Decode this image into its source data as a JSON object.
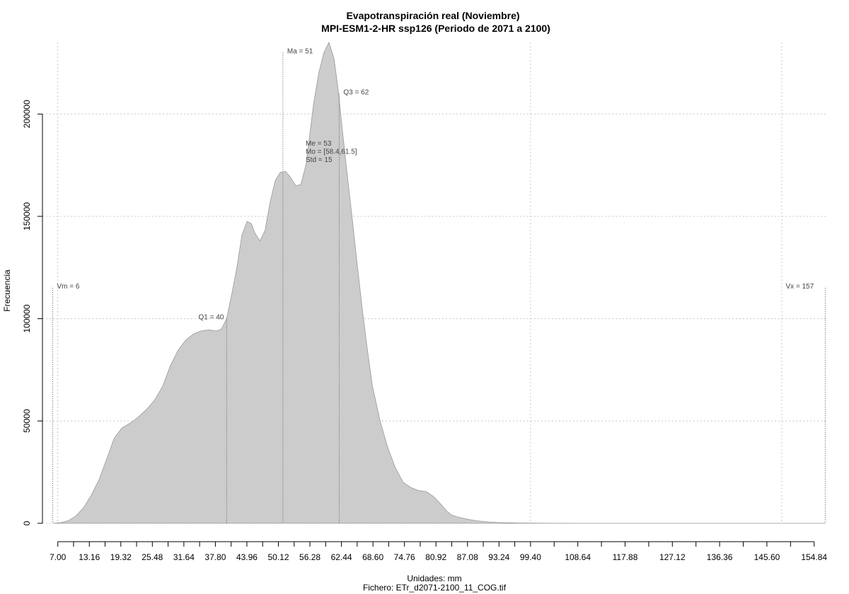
{
  "chart_data": {
    "type": "area",
    "title": "Evapotranspiración real (Noviembre)",
    "subtitle": "MPI-ESM1-2-HR ssp126 (Periodo de 2071 a 2100)",
    "xlabel": "Unidades: mm",
    "ylabel": "Frecuencia",
    "file_caption": "Fichero: ETr_d2071-2100_11_COG.tif",
    "xlim": [
      4,
      157.5
    ],
    "ylim": [
      0,
      235000
    ],
    "x_tick_labels": [
      "7.00",
      "13.16",
      "19.32",
      "25.48",
      "31.64",
      "37.80",
      "43.96",
      "50.12",
      "56.28",
      "62.44",
      "68.60",
      "74.76",
      "80.92",
      "87.08",
      "93.24",
      "99.40",
      "108.64",
      "117.88",
      "127.12",
      "136.36",
      "145.60",
      "154.84"
    ],
    "x_minor_ticks": [
      7.0,
      10.08,
      13.16,
      16.24,
      19.32,
      22.4,
      25.48,
      28.56,
      31.64,
      34.72,
      37.8,
      40.88,
      43.96,
      47.04,
      50.12,
      53.2,
      56.28,
      59.36,
      62.44,
      65.52,
      68.6,
      71.68,
      74.76,
      77.84,
      80.92,
      84.0,
      87.08,
      90.16,
      93.24,
      96.32,
      99.4,
      104.02,
      108.64,
      113.26,
      117.88,
      122.5,
      127.12,
      131.74,
      136.36,
      140.98,
      145.6,
      150.22,
      154.84
    ],
    "y_ticks": [
      0,
      50000,
      100000,
      150000,
      200000
    ],
    "y_tick_labels": [
      "0",
      "50000",
      "100000",
      "150000",
      "200000"
    ],
    "grid": true,
    "x_grid": [
      7.0,
      99.4,
      148.5
    ],
    "series": [
      {
        "x": [
          6.0,
          7.5,
          9.0,
          10.5,
          12.0,
          13.5,
          15.0,
          16.5,
          18.0,
          19.5,
          20.5,
          21.5,
          23.0,
          24.5,
          26.0,
          27.5,
          29.0,
          30.5,
          32.0,
          33.5,
          35.0,
          36.5,
          38.0,
          39.0,
          40.0,
          41.0,
          42.0,
          43.0,
          44.0,
          44.8,
          45.5,
          46.5,
          47.5,
          48.5,
          49.5,
          50.5,
          51.5,
          52.5,
          53.5,
          54.5,
          55.5,
          56.5,
          57.0,
          58.0,
          59.0,
          60.0,
          61.0,
          61.8,
          62.5,
          63.5,
          64.5,
          65.5,
          66.5,
          67.5,
          68.5,
          70.0,
          71.5,
          73.0,
          74.5,
          76.0,
          77.5,
          79.0,
          80.5,
          82.0,
          83.0,
          84.0,
          85.0,
          86.0,
          87.5,
          89.0,
          91.0,
          93.0,
          95.0,
          97.0,
          99.0,
          101.0,
          103.0,
          105.0,
          110.0,
          120.0,
          130.0,
          140.0,
          150.0,
          157.0
        ],
        "y": [
          0,
          300,
          1200,
          3500,
          7500,
          13500,
          21000,
          31000,
          41500,
          46500,
          48000,
          49500,
          52500,
          56000,
          60500,
          67000,
          77000,
          84500,
          89500,
          92500,
          94000,
          94500,
          94000,
          95000,
          100000,
          112000,
          125000,
          141000,
          147500,
          146500,
          142000,
          138000,
          143000,
          157000,
          167500,
          171500,
          172000,
          169000,
          165000,
          165500,
          175000,
          195000,
          205000,
          220000,
          230000,
          235000,
          227000,
          212000,
          195000,
          172000,
          150000,
          127000,
          105000,
          85000,
          67000,
          50000,
          37000,
          27000,
          20000,
          17500,
          16000,
          15500,
          13000,
          9000,
          6000,
          4000,
          3200,
          2600,
          1800,
          1200,
          700,
          400,
          250,
          150,
          100,
          60,
          30,
          15,
          0,
          0,
          0,
          0,
          0,
          0
        ]
      }
    ],
    "annotations": [
      {
        "label": "Vm = 6",
        "x": 6,
        "y_top": 115000
      },
      {
        "label": "Q1 = 40",
        "x": 40,
        "y_top": 100000
      },
      {
        "label": "Ma = 51",
        "x": 51,
        "y_top": 230000
      },
      {
        "label": "Q3 = 62",
        "x": 62,
        "y_top": 210000
      },
      {
        "label": "Vx = 157",
        "x": 157,
        "y_top": 115000
      }
    ],
    "stats_lines": [
      "Me = 53",
      "Mo = [58.4,61.5]",
      "Std = 15"
    ],
    "fill_color": "#cccccc",
    "line_color": "#999999"
  }
}
